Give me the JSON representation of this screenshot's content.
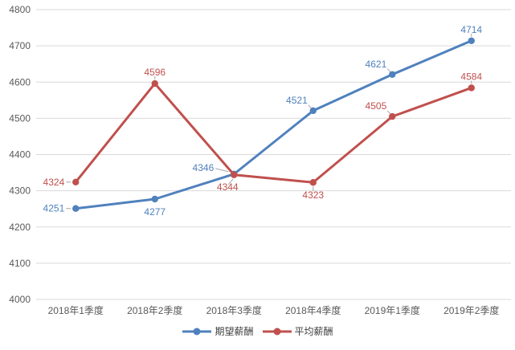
{
  "chart_data": {
    "type": "line",
    "title": "",
    "xlabel": "",
    "ylabel": "",
    "categories": [
      "2018年1季度",
      "2018年2季度",
      "2018年3季度",
      "2018年4季度",
      "2019年1季度",
      "2019年2季度"
    ],
    "series": [
      {
        "name": "期望薪酬",
        "color": "#4F81BD",
        "values": [
          4251,
          4277,
          4346,
          4521,
          4621,
          4714
        ],
        "label_placements": [
          "left",
          "below-nl",
          "left-above",
          "above-left",
          "above-left",
          "above"
        ]
      },
      {
        "name": "平均薪酬",
        "color": "#C0504D",
        "values": [
          4324,
          4596,
          4344,
          4323,
          4505,
          4584
        ],
        "label_placements": [
          "left",
          "above",
          "below-left",
          "below",
          "above-left",
          "above"
        ]
      }
    ],
    "ylim": [
      4000,
      4800
    ],
    "yticks": [
      4000,
      4100,
      4200,
      4300,
      4400,
      4500,
      4600,
      4700,
      4800
    ],
    "grid": true,
    "legend_position": "bottom",
    "show_data_labels": true,
    "colors": {
      "grid": "#D9D9D9",
      "axis_text": "#595959",
      "leader": "#A6A6A6",
      "background": "#FFFFFF",
      "legend_text": "#404040"
    }
  }
}
